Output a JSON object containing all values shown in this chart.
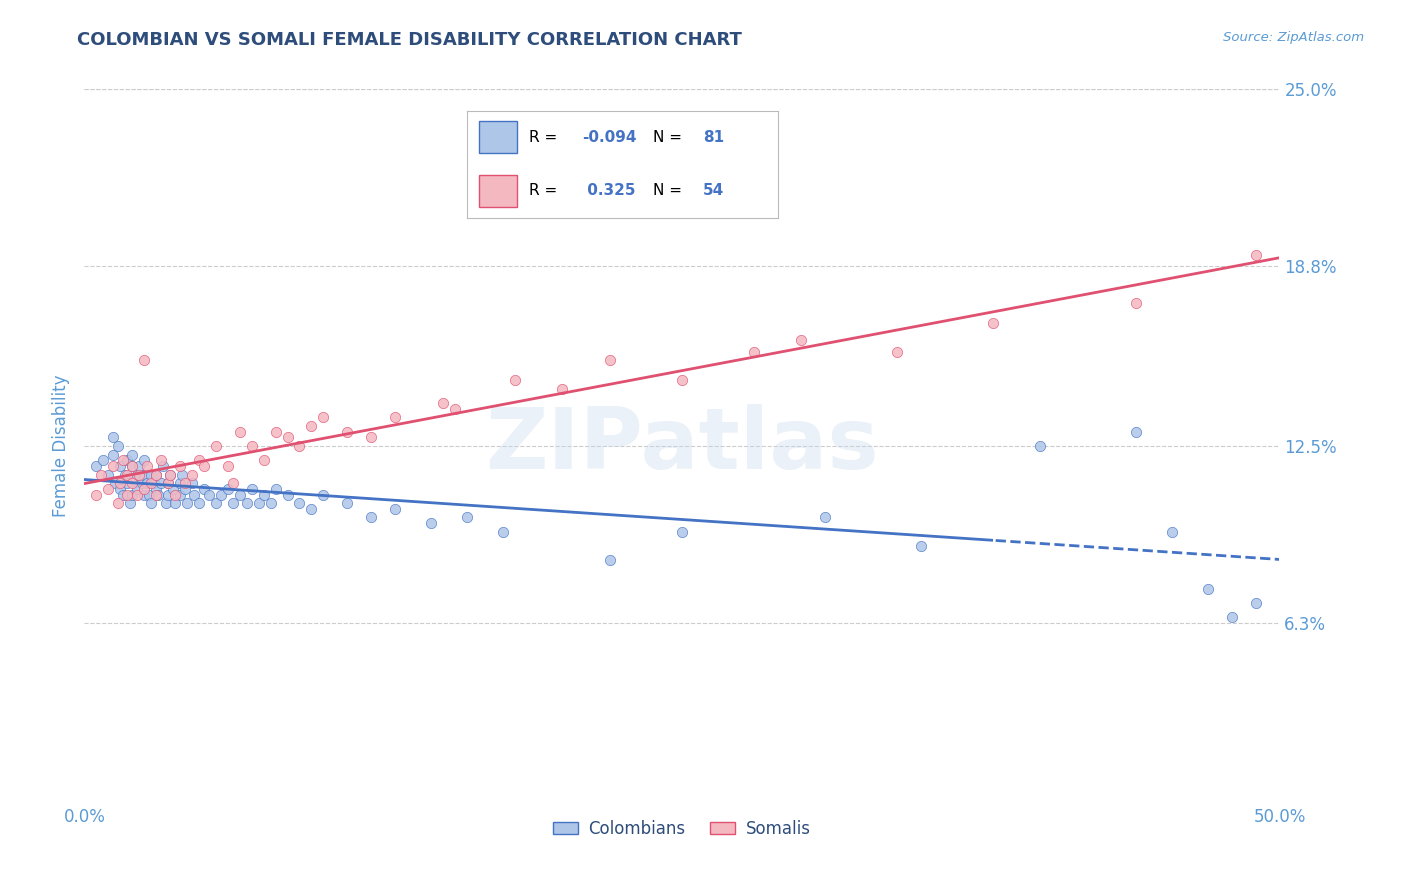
{
  "title": "COLOMBIAN VS SOMALI FEMALE DISABILITY CORRELATION CHART",
  "source": "Source: ZipAtlas.com",
  "ylabel": "Female Disability",
  "xlim": [
    0.0,
    0.5
  ],
  "ylim": [
    0.0,
    0.25
  ],
  "xtick_labels": [
    "0.0%",
    "50.0%"
  ],
  "ytick_labels": [
    "6.3%",
    "12.5%",
    "18.8%",
    "25.0%"
  ],
  "ytick_values": [
    0.063,
    0.125,
    0.188,
    0.25
  ],
  "grid_color": "#cccccc",
  "background_color": "#ffffff",
  "watermark_text": "ZIPatlas",
  "colombian_color": "#aec6e8",
  "somali_color": "#f4b8c1",
  "colombian_line_color": "#4472c4",
  "somali_line_color": "#e05070",
  "title_color": "#2e4d7b",
  "axis_label_color": "#5b9bd5",
  "tick_label_color": "#5b9bd5",
  "R_colombian": -0.094,
  "R_somali": 0.325,
  "N_colombian": 81,
  "N_somali": 54,
  "colombian_x": [
    0.005,
    0.008,
    0.01,
    0.012,
    0.012,
    0.013,
    0.014,
    0.015,
    0.015,
    0.016,
    0.017,
    0.018,
    0.018,
    0.019,
    0.02,
    0.02,
    0.02,
    0.022,
    0.022,
    0.023,
    0.024,
    0.025,
    0.025,
    0.025,
    0.026,
    0.027,
    0.028,
    0.028,
    0.029,
    0.03,
    0.03,
    0.031,
    0.032,
    0.033,
    0.034,
    0.035,
    0.035,
    0.036,
    0.037,
    0.038,
    0.04,
    0.04,
    0.041,
    0.042,
    0.043,
    0.045,
    0.046,
    0.048,
    0.05,
    0.052,
    0.055,
    0.057,
    0.06,
    0.062,
    0.065,
    0.068,
    0.07,
    0.073,
    0.075,
    0.078,
    0.08,
    0.085,
    0.09,
    0.095,
    0.1,
    0.11,
    0.12,
    0.13,
    0.145,
    0.16,
    0.175,
    0.22,
    0.25,
    0.31,
    0.35,
    0.4,
    0.44,
    0.455,
    0.47,
    0.48,
    0.49
  ],
  "colombian_y": [
    0.118,
    0.12,
    0.115,
    0.122,
    0.128,
    0.112,
    0.125,
    0.11,
    0.118,
    0.108,
    0.115,
    0.12,
    0.112,
    0.105,
    0.118,
    0.122,
    0.108,
    0.115,
    0.11,
    0.118,
    0.112,
    0.115,
    0.108,
    0.12,
    0.112,
    0.108,
    0.115,
    0.105,
    0.112,
    0.11,
    0.115,
    0.108,
    0.112,
    0.118,
    0.105,
    0.112,
    0.108,
    0.115,
    0.11,
    0.105,
    0.112,
    0.108,
    0.115,
    0.11,
    0.105,
    0.112,
    0.108,
    0.105,
    0.11,
    0.108,
    0.105,
    0.108,
    0.11,
    0.105,
    0.108,
    0.105,
    0.11,
    0.105,
    0.108,
    0.105,
    0.11,
    0.108,
    0.105,
    0.103,
    0.108,
    0.105,
    0.1,
    0.103,
    0.098,
    0.1,
    0.095,
    0.085,
    0.095,
    0.1,
    0.09,
    0.125,
    0.13,
    0.095,
    0.075,
    0.065,
    0.07
  ],
  "somali_x": [
    0.005,
    0.007,
    0.01,
    0.012,
    0.014,
    0.015,
    0.016,
    0.018,
    0.018,
    0.02,
    0.02,
    0.022,
    0.023,
    0.025,
    0.025,
    0.026,
    0.028,
    0.03,
    0.03,
    0.032,
    0.035,
    0.036,
    0.038,
    0.04,
    0.042,
    0.045,
    0.048,
    0.05,
    0.055,
    0.06,
    0.062,
    0.065,
    0.07,
    0.075,
    0.08,
    0.085,
    0.09,
    0.095,
    0.1,
    0.11,
    0.12,
    0.13,
    0.15,
    0.155,
    0.18,
    0.2,
    0.22,
    0.25,
    0.28,
    0.3,
    0.34,
    0.38,
    0.44,
    0.49
  ],
  "somali_y": [
    0.108,
    0.115,
    0.11,
    0.118,
    0.105,
    0.112,
    0.12,
    0.115,
    0.108,
    0.118,
    0.112,
    0.108,
    0.115,
    0.11,
    0.155,
    0.118,
    0.112,
    0.115,
    0.108,
    0.12,
    0.112,
    0.115,
    0.108,
    0.118,
    0.112,
    0.115,
    0.12,
    0.118,
    0.125,
    0.118,
    0.112,
    0.13,
    0.125,
    0.12,
    0.13,
    0.128,
    0.125,
    0.132,
    0.135,
    0.13,
    0.128,
    0.135,
    0.14,
    0.138,
    0.148,
    0.145,
    0.155,
    0.148,
    0.158,
    0.162,
    0.158,
    0.168,
    0.175,
    0.192
  ]
}
